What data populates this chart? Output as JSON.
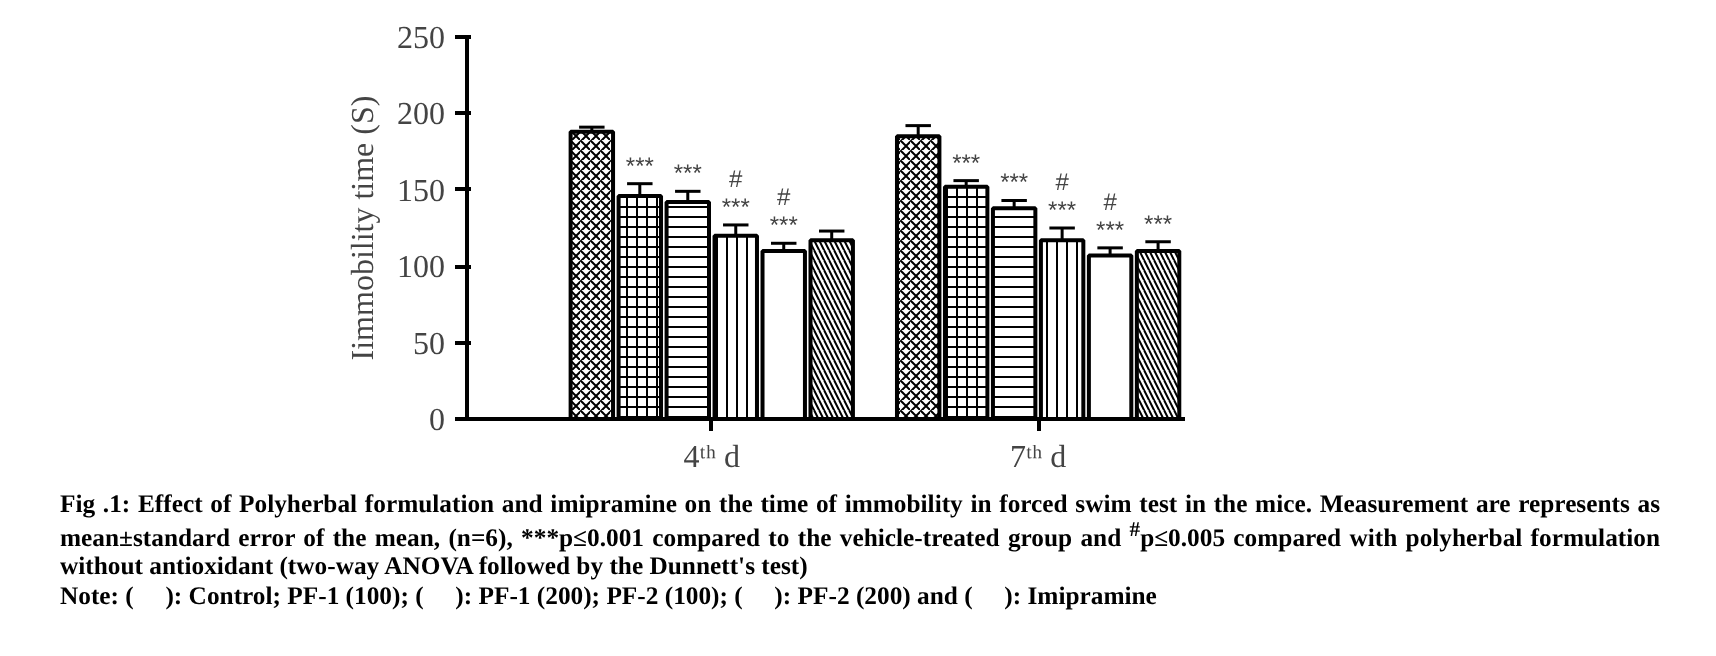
{
  "chart_data": {
    "type": "bar",
    "ylabel": "Iimmobility time (S)",
    "categories": [
      "4ᵗʰ d",
      "7ᵗʰ d"
    ],
    "ylim": [
      0,
      250
    ],
    "yticks": [
      0,
      50,
      100,
      150,
      200,
      250
    ],
    "grid": false,
    "series": [
      {
        "color": "#000000",
        "values": [
          188,
          185
        ],
        "errors": [
          3,
          7
        ]
      },
      {
        "color": "#000000",
        "values": [
          146,
          152
        ],
        "errors": [
          8,
          4
        ],
        "value_labels": [
          "***",
          "***"
        ]
      },
      {
        "color": "#000000",
        "values": [
          142,
          138
        ],
        "errors": [
          7,
          5
        ],
        "value_labels": [
          "***",
          "***"
        ]
      },
      {
        "color": "#000000",
        "values": [
          120,
          117
        ],
        "errors": [
          7,
          8
        ],
        "value_labels": [
          "#\n***",
          "#\n***"
        ]
      },
      {
        "color": "#000000",
        "values": [
          110,
          107
        ],
        "errors": [
          5,
          5
        ],
        "value_labels": [
          "#\n***",
          "#\n***"
        ]
      },
      {
        "color": "#000000",
        "values": [
          117,
          110
        ],
        "errors": [
          6,
          6
        ],
        "value_labels": [
          null,
          "***"
        ]
      }
    ],
    "annotations": [
      "Fig .1: Effect of Polyherbal formulation and imipramine on the time of immobility in forced swim test in the mice. Measurement are represents as mean±standard error of the mean, (n=6), ***p≤0.001 compared to the vehicle-treated group and $^{#}$p≤0.005 compared with polyherbal formulation without antioxidant (two-way ANOVA followed by the Dunnett's test)",
      "Note: (     ): Control; PF-1 (100); (     ): PF-1 (200); PF-2 (100); (     ): PF-2 (200) and (     ): Imipramine"
    ]
  }
}
